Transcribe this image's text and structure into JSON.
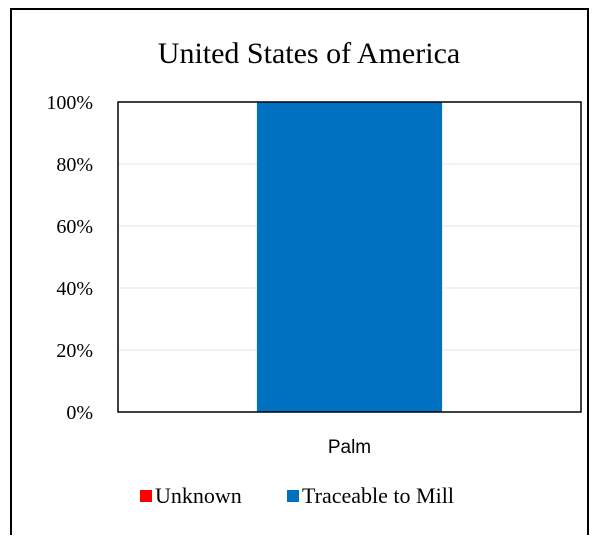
{
  "chart_data": {
    "type": "bar",
    "stacked": true,
    "title": "United States of America",
    "categories": [
      "Palm"
    ],
    "series": [
      {
        "name": "Unknown",
        "values": [
          0
        ],
        "color": "#ff0000"
      },
      {
        "name": "Traceable to Mill",
        "values": [
          100
        ],
        "color": "#0070c0"
      }
    ],
    "ylim": [
      0,
      100
    ],
    "yticks": [
      "0%",
      "20%",
      "40%",
      "60%",
      "80%",
      "100%"
    ],
    "grid": true,
    "legend_position": "bottom"
  }
}
